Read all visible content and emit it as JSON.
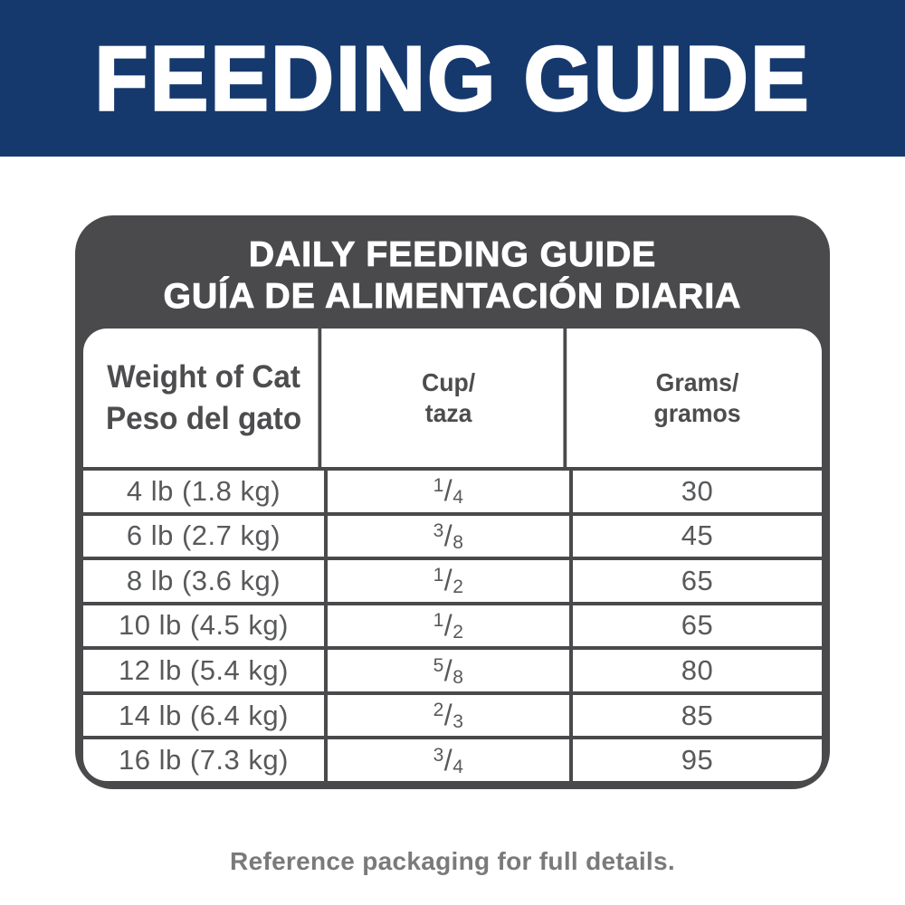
{
  "banner": {
    "title": "FEEDING GUIDE"
  },
  "card": {
    "title_line1": "DAILY FEEDING GUIDE",
    "title_line2": "GUÍA DE ALIMENTACIÓN DIARIA"
  },
  "table": {
    "columns": [
      {
        "line1": "Weight of Cat",
        "line2": "Peso del gato"
      },
      {
        "line1": "Cup/",
        "line2": "taza"
      },
      {
        "line1": "Grams/",
        "line2": "gramos"
      }
    ],
    "fraction_slash": "/",
    "rows": [
      {
        "weight": "4 lb (1.8 kg)",
        "cup": {
          "num": "1",
          "den": "4"
        },
        "grams": "30"
      },
      {
        "weight": "6 lb (2.7 kg)",
        "cup": {
          "num": "3",
          "den": "8"
        },
        "grams": "45"
      },
      {
        "weight": "8 lb (3.6 kg)",
        "cup": {
          "num": "1",
          "den": "2"
        },
        "grams": "65"
      },
      {
        "weight": "10 lb (4.5 kg)",
        "cup": {
          "num": "1",
          "den": "2"
        },
        "grams": "65"
      },
      {
        "weight": "12 lb (5.4 kg)",
        "cup": {
          "num": "5",
          "den": "8"
        },
        "grams": "80"
      },
      {
        "weight": "14 lb (6.4 kg)",
        "cup": {
          "num": "2",
          "den": "3"
        },
        "grams": "85"
      },
      {
        "weight": "16 lb (7.3 kg)",
        "cup": {
          "num": "3",
          "den": "4"
        },
        "grams": "95"
      }
    ]
  },
  "footer": {
    "note": "Reference packaging for full details."
  },
  "colors": {
    "banner_blue": "#15396d",
    "card_gray": "#4a4a4c",
    "header_text_gray": "#4d4d4f",
    "body_text_gray": "#58595b",
    "footer_text_gray": "#7a7a7a"
  }
}
